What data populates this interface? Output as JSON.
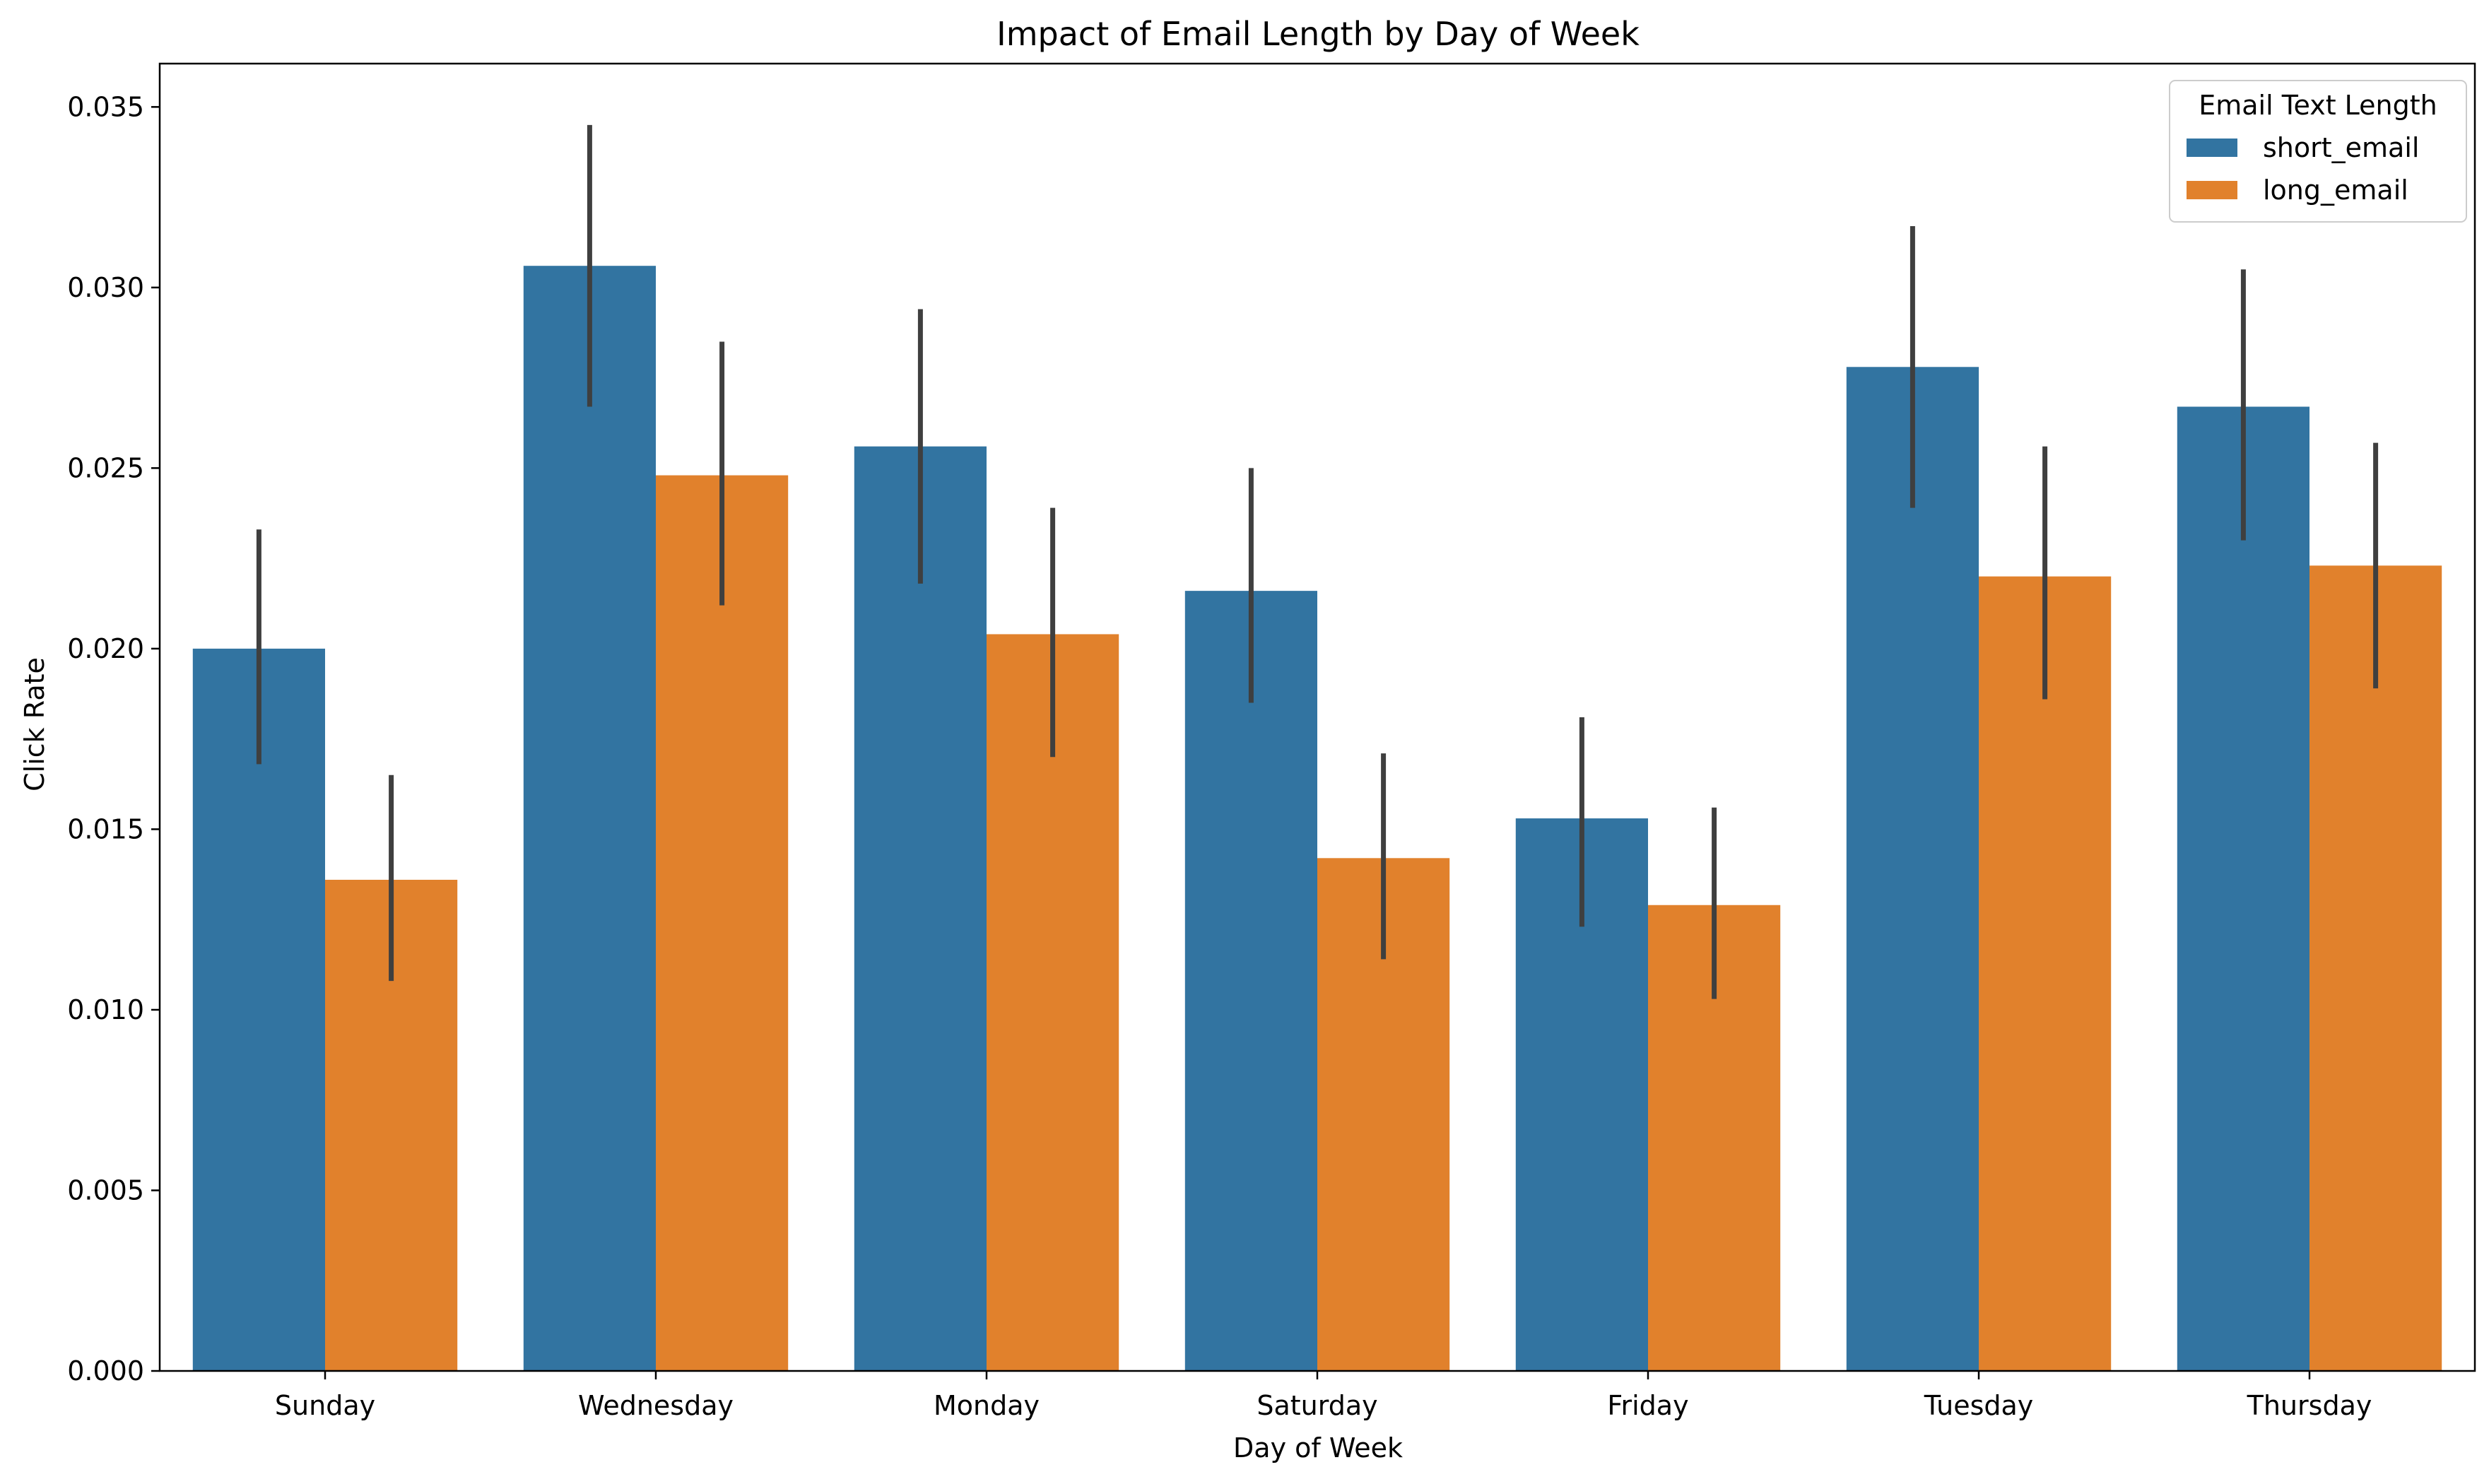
{
  "chart_data": {
    "type": "bar",
    "title": "Impact of Email Length by Day of Week",
    "xlabel": "Day of Week",
    "ylabel": "Click Rate",
    "categories": [
      "Sunday",
      "Wednesday",
      "Monday",
      "Saturday",
      "Friday",
      "Tuesday",
      "Thursday"
    ],
    "ylim": [
      0,
      0.0362
    ],
    "yticks": [
      "0.000",
      "0.005",
      "0.010",
      "0.015",
      "0.020",
      "0.025",
      "0.030",
      "0.035"
    ],
    "ytick_values": [
      0,
      0.005,
      0.01,
      0.015,
      0.02,
      0.025,
      0.03,
      0.035
    ],
    "grid": false,
    "legend": {
      "title": "Email Text Length",
      "placement": "top-right"
    },
    "series": [
      {
        "name": "short_email",
        "color": "#3274a1",
        "values": [
          0.02,
          0.0306,
          0.0256,
          0.0216,
          0.0153,
          0.0278,
          0.0267
        ],
        "ci_low": [
          0.0168,
          0.0267,
          0.0218,
          0.0185,
          0.0123,
          0.0239,
          0.023
        ],
        "ci_high": [
          0.0233,
          0.0345,
          0.0294,
          0.025,
          0.0181,
          0.0317,
          0.0305
        ]
      },
      {
        "name": "long_email",
        "color": "#e1812c",
        "values": [
          0.0136,
          0.0248,
          0.0204,
          0.0142,
          0.0129,
          0.022,
          0.0223
        ],
        "ci_low": [
          0.0108,
          0.0212,
          0.017,
          0.0114,
          0.0103,
          0.0186,
          0.0189
        ],
        "ci_high": [
          0.0165,
          0.0285,
          0.0239,
          0.0171,
          0.0156,
          0.0256,
          0.0257
        ]
      }
    ],
    "errorbar_color": "#3f3f3f"
  }
}
